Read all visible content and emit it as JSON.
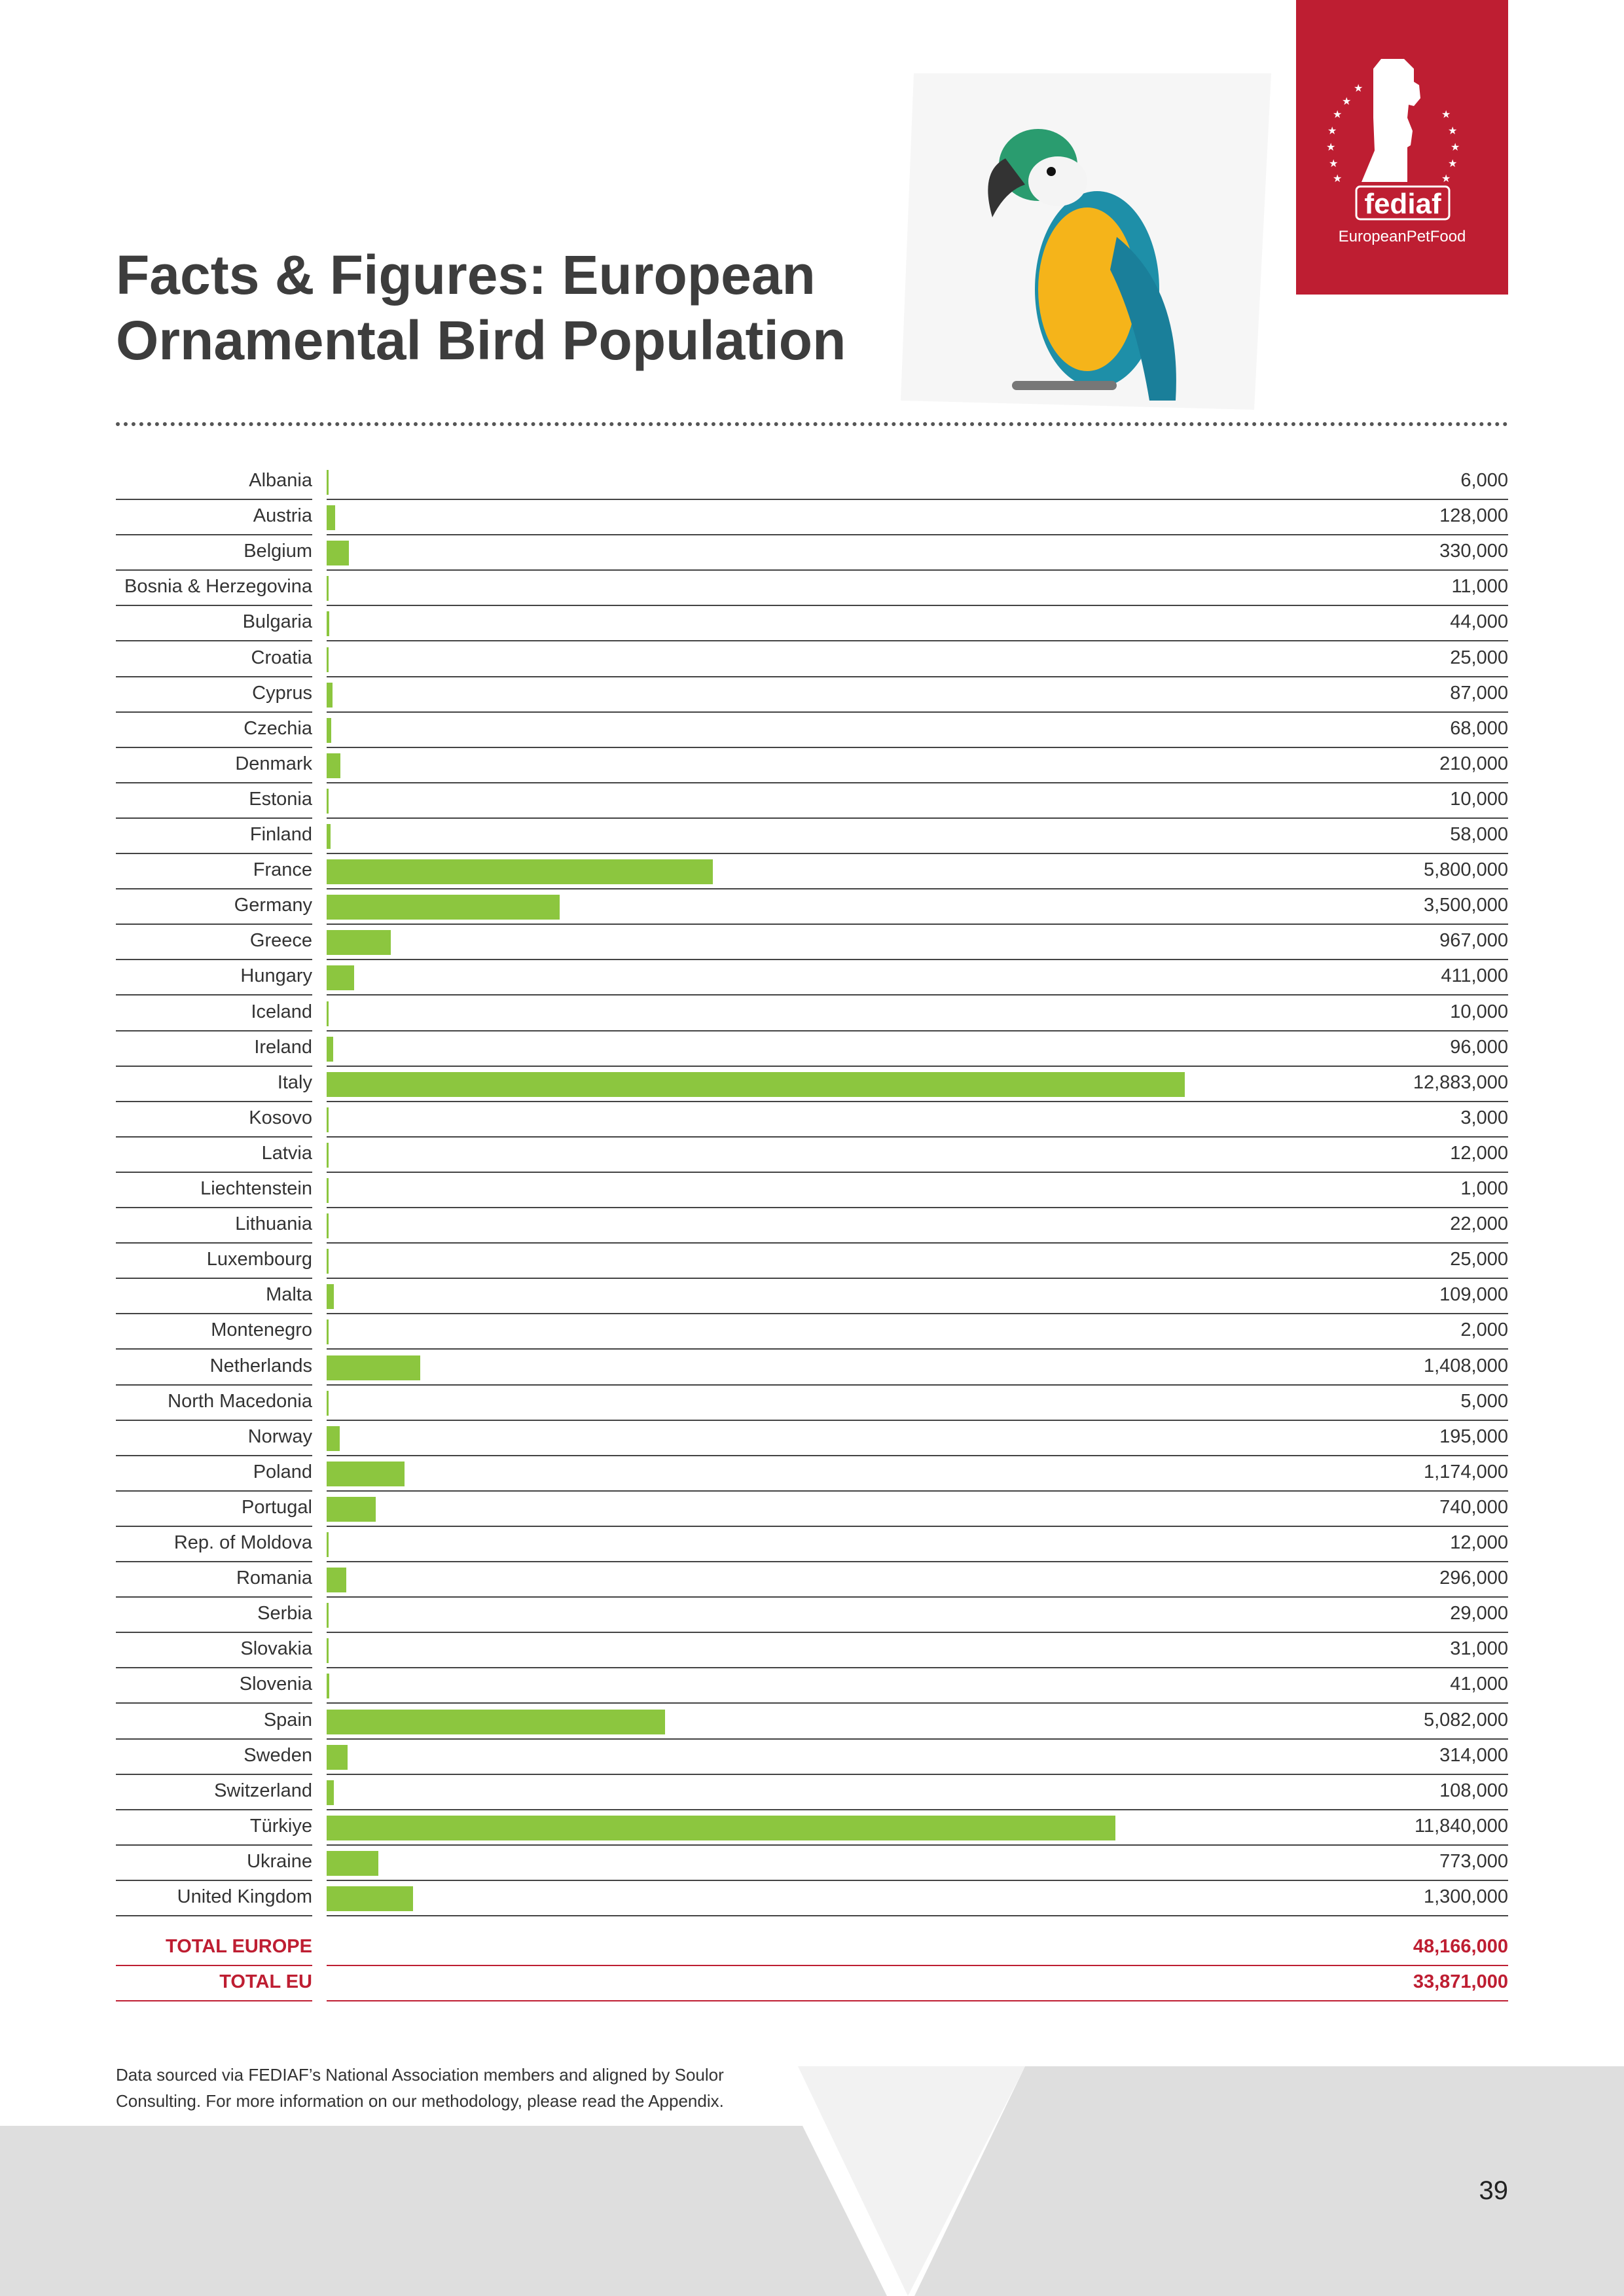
{
  "title": "Facts & Figures: European Ornamental Bird Population",
  "logo": {
    "wordmark": "fediaf",
    "tagline": "EuropeanPetFood"
  },
  "chart_data": {
    "type": "bar",
    "orientation": "horizontal",
    "title": "Facts & Figures: European Ornamental Bird Population",
    "categories": [
      "Albania",
      "Austria",
      "Belgium",
      "Bosnia & Herzegovina",
      "Bulgaria",
      "Croatia",
      "Cyprus",
      "Czechia",
      "Denmark",
      "Estonia",
      "Finland",
      "France",
      "Germany",
      "Greece",
      "Hungary",
      "Iceland",
      "Ireland",
      "Italy",
      "Kosovo",
      "Latvia",
      "Liechtenstein",
      "Lithuania",
      "Luxembourg",
      "Malta",
      "Montenegro",
      "Netherlands",
      "North Macedonia",
      "Norway",
      "Poland",
      "Portugal",
      "Rep. of Moldova",
      "Romania",
      "Serbia",
      "Slovakia",
      "Slovenia",
      "Spain",
      "Sweden",
      "Switzerland",
      "Türkiye",
      "Ukraine",
      "United Kingdom"
    ],
    "values": [
      6000,
      128000,
      330000,
      11000,
      44000,
      25000,
      87000,
      68000,
      210000,
      10000,
      58000,
      5800000,
      3500000,
      967000,
      411000,
      10000,
      96000,
      12883000,
      3000,
      12000,
      1000,
      22000,
      25000,
      109000,
      2000,
      1408000,
      5000,
      195000,
      1174000,
      740000,
      12000,
      296000,
      29000,
      31000,
      41000,
      5082000,
      314000,
      108000,
      11840000,
      773000,
      1300000
    ],
    "labels": [
      "6,000",
      "128,000",
      "330,000",
      "11,000",
      "44,000",
      "25,000",
      "87,000",
      "68,000",
      "210,000",
      "10,000",
      "58,000",
      "5,800,000",
      "3,500,000",
      "967,000",
      "411,000",
      "10,000",
      "96,000",
      "12,883,000",
      "3,000",
      "12,000",
      "1,000",
      "22,000",
      "25,000",
      "109,000",
      "2,000",
      "1,408,000",
      "5,000",
      "195,000",
      "1,174,000",
      "740,000",
      "12,000",
      "296,000",
      "29,000",
      "31,000",
      "41,000",
      "5,082,000",
      "314,000",
      "108,000",
      "11,840,000",
      "773,000",
      "1,300,000"
    ],
    "xlim": [
      0,
      12883000
    ],
    "bar_color": "#8cc63f",
    "totals": [
      {
        "label": "TOTAL EUROPE",
        "value": 48166000,
        "display": "48,166,000"
      },
      {
        "label": "TOTAL EU",
        "value": 33871000,
        "display": "33,871,000"
      }
    ]
  },
  "colors": {
    "brand": "#be1e32",
    "bar": "#8cc63f"
  },
  "footnote": "Data sourced via FEDIAF’s National Association members and aligned by Soulor Consulting. For more information on our methodology, please read the Appendix.",
  "page_number": "39"
}
